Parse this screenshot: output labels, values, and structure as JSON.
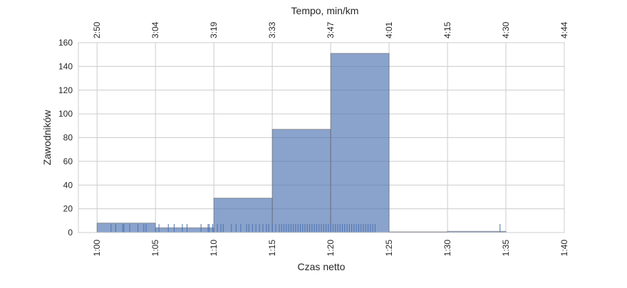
{
  "chart_data": {
    "type": "bar",
    "title": "",
    "top_axis_label": "Tempo, min/km",
    "xlabel": "Czas netto",
    "ylabel": "Zawodników",
    "x_tick_labels": [
      "1:00",
      "1:05",
      "1:10",
      "1:15",
      "1:20",
      "1:25",
      "1:30",
      "1:35",
      "1:40"
    ],
    "top_tick_labels": [
      "2:50",
      "3:04",
      "3:19",
      "3:33",
      "3:47",
      "4:01",
      "4:15",
      "4:30",
      "4:44"
    ],
    "y_tick_labels": [
      "0",
      "20",
      "40",
      "60",
      "80",
      "100",
      "120",
      "140",
      "160"
    ],
    "xlim_minutes": [
      58.4,
      100
    ],
    "ylim": [
      0,
      160
    ],
    "bins": [
      {
        "start": "1:00",
        "end": "1:05",
        "count": 8
      },
      {
        "start": "1:05",
        "end": "1:10",
        "count": 4
      },
      {
        "start": "1:10",
        "end": "1:15",
        "count": 29
      },
      {
        "start": "1:15",
        "end": "1:20",
        "count": 87
      },
      {
        "start": "1:20",
        "end": "1:25",
        "count": 151
      },
      {
        "start": "1:25",
        "end": "1:30",
        "count": 0
      },
      {
        "start": "1:30",
        "end": "1:35",
        "count": 1
      }
    ],
    "rug_minutes_sample": [
      61.2,
      61.6,
      62.2,
      62.3,
      62.8,
      63.5,
      64.0,
      64.2,
      65.3,
      66.1,
      66.6,
      67.3,
      67.7,
      68.9,
      69.5,
      69.6,
      69.9,
      70.3,
      70.6,
      70.8,
      71.5,
      71.9,
      72.3,
      72.8,
      73.0,
      73.3,
      73.6,
      73.9,
      74.2,
      74.5,
      74.7,
      75.0,
      75.3,
      75.6,
      75.8,
      76.0,
      76.2,
      76.4,
      76.6,
      76.8,
      77.0,
      77.2,
      77.4,
      77.6,
      77.8,
      78.0,
      78.2,
      78.4,
      78.6,
      78.8,
      79.0,
      79.2,
      79.4,
      79.6,
      79.8,
      80.0,
      80.2,
      80.4,
      80.6,
      80.8,
      81.0,
      81.2,
      81.4,
      81.6,
      81.8,
      82.0,
      82.2,
      82.4,
      82.6,
      82.8,
      83.0,
      83.2,
      83.4,
      83.6,
      83.8,
      94.5
    ],
    "bar_color": "#4c72b0",
    "bar_alpha": 0.65,
    "grid": true
  }
}
